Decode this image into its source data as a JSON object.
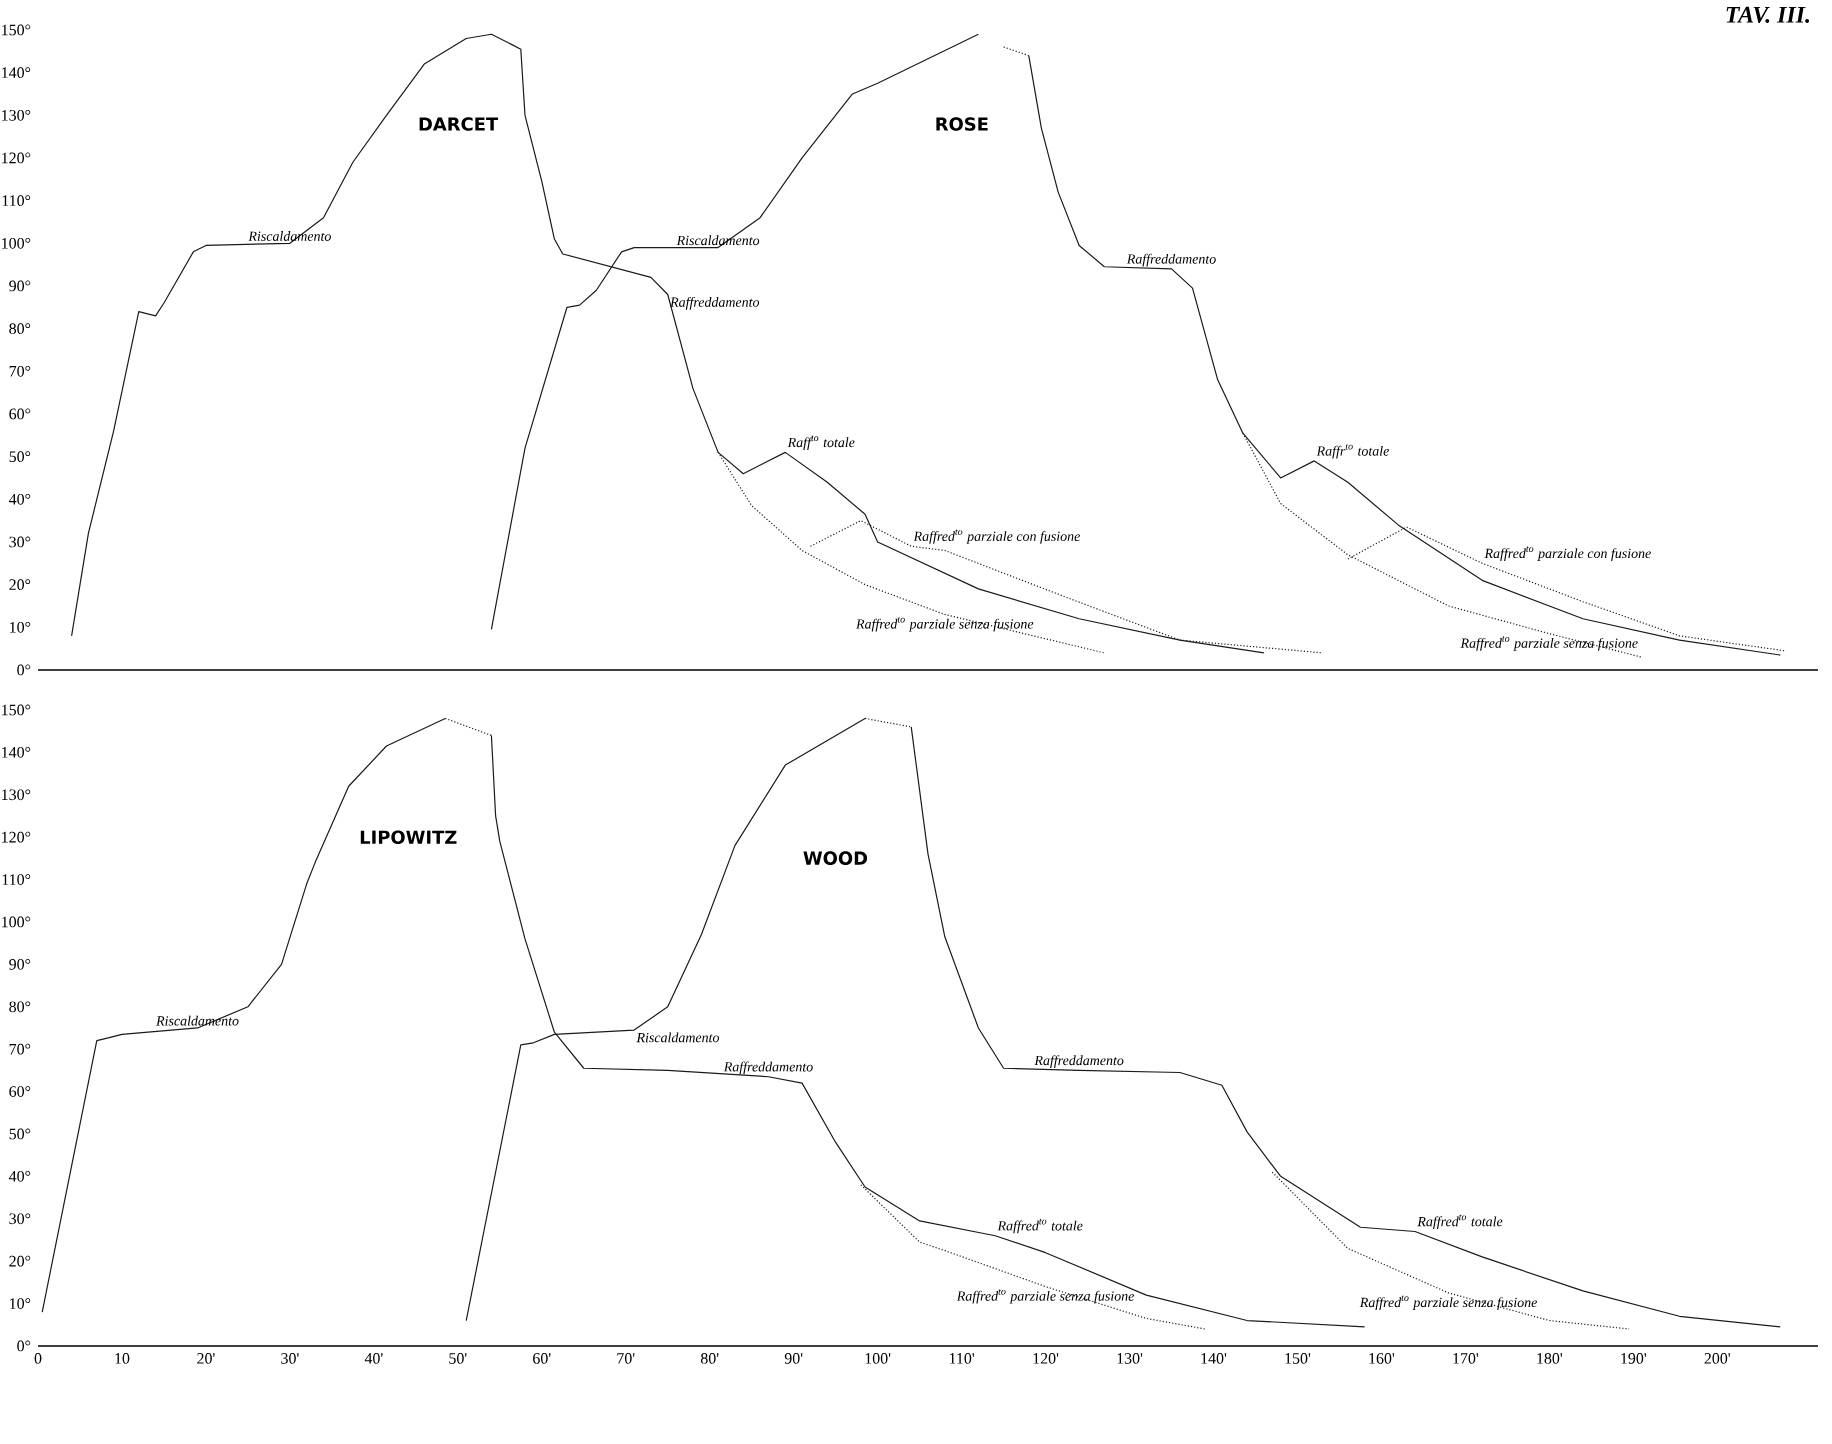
{
  "chart_data": [
    {
      "type": "line",
      "title": "TAV. III.",
      "tick_labels": "y",
      "xlim": [
        0,
        212
      ],
      "ylim": [
        0,
        150
      ],
      "yticks": [
        {
          "value": 0,
          "label": "0°"
        },
        {
          "value": 10,
          "label": "10°"
        },
        {
          "value": 20,
          "label": "20°"
        },
        {
          "value": 30,
          "label": "30°"
        },
        {
          "value": 40,
          "label": "40°"
        },
        {
          "value": 50,
          "label": "50°"
        },
        {
          "value": 60,
          "label": "60°"
        },
        {
          "value": 70,
          "label": "70°"
        },
        {
          "value": 80,
          "label": "80°"
        },
        {
          "value": 90,
          "label": "90°"
        },
        {
          "value": 100,
          "label": "100°"
        },
        {
          "value": 110,
          "label": "110°"
        },
        {
          "value": 120,
          "label": "120°"
        },
        {
          "value": 130,
          "label": "130°"
        },
        {
          "value": 140,
          "label": "140°"
        },
        {
          "value": 150,
          "label": "150°"
        }
      ],
      "series": [
        {
          "color": "#1a1a1a",
          "line_style": "solid",
          "x": [
            4,
            6,
            9,
            12,
            14,
            15,
            18.5,
            20,
            30,
            34,
            37.5,
            41.5,
            46,
            51,
            54,
            56.5,
            57.5,
            58,
            60,
            61.5,
            62.5,
            73,
            75,
            78,
            81,
            84,
            89,
            94,
            98.5,
            100,
            112,
            124,
            136,
            146
          ],
          "values": [
            8,
            32,
            56,
            84,
            83,
            86,
            98,
            99.5,
            100,
            106,
            119,
            130,
            142,
            148,
            149,
            146.5,
            145.5,
            130,
            114.5,
            101,
            97.5,
            92,
            88,
            66,
            51,
            46,
            51,
            44,
            36.5,
            30,
            19,
            12,
            7,
            4
          ]
        },
        {
          "color": "#1a1a1a",
          "line_style": "dotted",
          "x": [
            92,
            98,
            104,
            108,
            122.5,
            136,
            153
          ],
          "values": [
            29,
            35,
            29,
            28,
            17,
            7,
            4
          ]
        },
        {
          "color": "#1a1a1a",
          "line_style": "dotted",
          "x": [
            81,
            85,
            91,
            98.5,
            108,
            127
          ],
          "values": [
            51,
            38.5,
            28,
            20,
            13,
            4
          ]
        },
        {
          "color": "#1a1a1a",
          "line_style": "solid",
          "x": [
            54,
            58,
            63,
            64.5,
            66.5,
            69.5,
            71,
            81,
            86,
            91,
            97,
            100,
            112
          ],
          "values": [
            9.5,
            52,
            85,
            85.5,
            89,
            98,
            99,
            99,
            106,
            120,
            135,
            137.5,
            149
          ]
        },
        {
          "color": "#1a1a1a",
          "line_style": "dotted",
          "x": [
            115,
            118
          ],
          "values": [
            146,
            144
          ]
        },
        {
          "color": "#1a1a1a",
          "line_style": "solid",
          "x": [
            118,
            119.5,
            121.5,
            124,
            127,
            135,
            137.5,
            140.5,
            143.5,
            148,
            152,
            156,
            162,
            172,
            184,
            195.5,
            207.5
          ],
          "values": [
            144,
            127,
            112,
            99.5,
            94.5,
            94,
            89.5,
            68,
            55.5,
            45,
            49,
            44,
            34,
            21,
            12,
            7,
            3.5
          ]
        },
        {
          "color": "#1a1a1a",
          "line_style": "dotted",
          "x": [
            156,
            163,
            172,
            184,
            195.5,
            208
          ],
          "values": [
            26,
            33.5,
            25,
            16,
            8,
            4.5
          ]
        },
        {
          "color": "#1a1a1a",
          "line_style": "dotted",
          "x": [
            143.5,
            148,
            156,
            168,
            180,
            191
          ],
          "values": [
            55.5,
            39,
            27,
            15,
            8.5,
            3
          ]
        }
      ],
      "annotations": [
        "DARCET",
        "ROSE",
        {
          "text": "Riscaldamento",
          "x": 30,
          "y": 100
        },
        {
          "text": "Riscaldamento",
          "x": 81,
          "y": 99
        },
        {
          "text": "Raffreddamento",
          "x": 75,
          "y": 88
        },
        {
          "text": "Raff$^{to}$ totale",
          "x": 89,
          "y": 51
        },
        {
          "text": "Raffred$^{to}$ parziale con fusione",
          "x": 104,
          "y": 29
        },
        {
          "text": "Raffred$^{to}$ parziale senza fusione",
          "x": 108,
          "y": 13
        },
        {
          "text": "Raffreddamento",
          "x": 135,
          "y": 94
        },
        {
          "text": "Raffr$^{to}$ totale",
          "x": 152,
          "y": 49
        },
        {
          "text": "Raffred$^{to}$ parziale con fusione",
          "x": 172,
          "y": 25
        },
        {
          "text": "Raffred$^{to}$ parziale senza fusione",
          "x": 180,
          "y": 8.5
        }
      ]
    },
    {
      "type": "line",
      "xlim": [
        0,
        212
      ],
      "ylim": [
        0,
        150
      ],
      "xticks": [
        {
          "value": 0,
          "label": "0"
        },
        {
          "value": 10,
          "label": "10"
        },
        {
          "value": 20,
          "label": "20'"
        },
        {
          "value": 30,
          "label": "30'"
        },
        {
          "value": 40,
          "label": "40'"
        },
        {
          "value": 50,
          "label": "50'"
        },
        {
          "value": 60,
          "label": "60'"
        },
        {
          "value": 70,
          "label": "70'"
        },
        {
          "value": 80,
          "label": "80'"
        },
        {
          "value": 90,
          "label": "90'"
        },
        {
          "value": 100,
          "label": "100'"
        },
        {
          "value": 110,
          "label": "110'"
        },
        {
          "value": 120,
          "label": "120'"
        },
        {
          "value": 130,
          "label": "130'"
        },
        {
          "value": 140,
          "label": "140'"
        },
        {
          "value": 150,
          "label": "150'"
        },
        {
          "value": 160,
          "label": "160'"
        },
        {
          "value": 170,
          "label": "170'"
        },
        {
          "value": 180,
          "label": "180'"
        },
        {
          "value": 190,
          "label": "190'"
        },
        {
          "value": 200,
          "label": "200'"
        }
      ],
      "yticks": [
        {
          "value": 0,
          "label": "0°"
        },
        {
          "value": 10,
          "label": "10°"
        },
        {
          "value": 20,
          "label": "20°"
        },
        {
          "value": 30,
          "label": "30°"
        },
        {
          "value": 40,
          "label": "40°"
        },
        {
          "value": 50,
          "label": "50°"
        },
        {
          "value": 60,
          "label": "60°"
        },
        {
          "value": 70,
          "label": "70°"
        },
        {
          "value": 80,
          "label": "80°"
        },
        {
          "value": 90,
          "label": "90°"
        },
        {
          "value": 100,
          "label": "100°"
        },
        {
          "value": 110,
          "label": "110°"
        },
        {
          "value": 120,
          "label": "120°"
        },
        {
          "value": 130,
          "label": "130°"
        },
        {
          "value": 140,
          "label": "140°"
        },
        {
          "value": 150,
          "label": "150°"
        }
      ],
      "series": [
        {
          "color": "#1a1a1a",
          "line_style": "solid",
          "x": [
            0.5,
            7,
            8,
            10,
            19,
            25,
            29,
            32,
            33,
            37,
            41.5,
            48.5
          ],
          "values": [
            8,
            72,
            72.5,
            73.5,
            75,
            80,
            90,
            109,
            114,
            132,
            141.5,
            148
          ]
        },
        {
          "color": "#1a1a1a",
          "line_style": "dotted",
          "x": [
            48.5,
            54
          ],
          "values": [
            148,
            144
          ]
        },
        {
          "color": "#1a1a1a",
          "line_style": "solid",
          "x": [
            54,
            54.5,
            55,
            58,
            61.5,
            65,
            75,
            87,
            91,
            95,
            98.5,
            105,
            114,
            120,
            132,
            144,
            158
          ],
          "values": [
            144,
            125,
            119,
            96,
            74,
            65.5,
            65,
            63.5,
            62,
            48,
            37.5,
            29.5,
            26,
            22,
            12,
            6,
            4.5
          ]
        },
        {
          "color": "#1a1a1a",
          "line_style": "dotted",
          "x": [
            98,
            105,
            108,
            120,
            132,
            139
          ],
          "values": [
            38,
            24.5,
            22.5,
            14,
            6.5,
            4
          ]
        },
        {
          "color": "#1a1a1a",
          "line_style": "solid",
          "x": [
            51,
            57.5,
            59,
            61.5,
            71,
            75,
            79,
            83,
            89,
            98.5
          ],
          "values": [
            6,
            71,
            71.5,
            73.5,
            74.5,
            80,
            97,
            118,
            137,
            148
          ]
        },
        {
          "color": "#1a1a1a",
          "line_style": "dotted",
          "x": [
            98.5,
            104
          ],
          "values": [
            148,
            146
          ]
        },
        {
          "color": "#1a1a1a",
          "line_style": "solid",
          "x": [
            104,
            106,
            108,
            112,
            115,
            124,
            136,
            141,
            144,
            148,
            157.5,
            164,
            172,
            184,
            195.5,
            207.5
          ],
          "values": [
            146,
            116,
            96.5,
            75,
            65.5,
            65,
            64.5,
            61.5,
            50.5,
            40,
            28,
            27,
            21,
            13,
            7,
            4.5
          ]
        },
        {
          "color": "#1a1a1a",
          "line_style": "dotted",
          "x": [
            147,
            156,
            168,
            180,
            189.5
          ],
          "values": [
            41,
            23,
            12.5,
            6,
            4
          ]
        }
      ],
      "annotations": [
        "LIPOWITZ",
        "WOOD",
        {
          "text": "Riscaldamento",
          "x": 19,
          "y": 75
        },
        {
          "text": "Riscaldamento",
          "x": 71,
          "y": 74.5
        },
        {
          "text": "Raffreddamento",
          "x": 87,
          "y": 63.5
        },
        {
          "text": "Raffreddamento",
          "x": 124,
          "y": 65
        },
        {
          "text": "Raffred$^{to}$ totale",
          "x": 114,
          "y": 26
        },
        {
          "text": "Raffred$^{to}$ parziale senza fusione",
          "x": 120,
          "y": 14
        },
        {
          "text": "Raffred$^{to}$ totale",
          "x": 164,
          "y": 27
        },
        {
          "text": "Raffred$^{to}$ parziale senza fusione",
          "x": 168,
          "y": 12.5
        }
      ]
    }
  ]
}
